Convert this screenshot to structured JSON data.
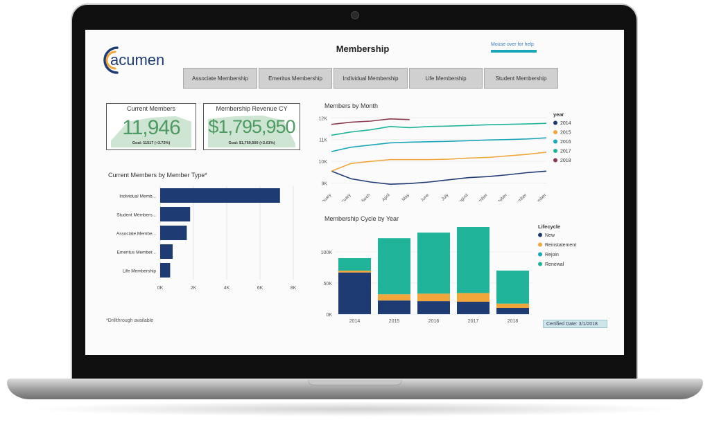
{
  "header": {
    "logo_text": "acumen",
    "title": "Membership",
    "help_text": "Mouse over for help"
  },
  "tabs": [
    {
      "label": "Associate Membership"
    },
    {
      "label": "Emeritus Membership"
    },
    {
      "label": "Individual Membership"
    },
    {
      "label": "Life Membership"
    },
    {
      "label": "Student Membership"
    }
  ],
  "kpis": {
    "current_members": {
      "title": "Current Members",
      "value": "11,946",
      "goal": "Goal: 11517 (+3.72%)"
    },
    "revenue": {
      "title": "Membership Revenue CY",
      "value": "$1,795,950",
      "goal": "Goal: $1,760,500 (+2.01%)"
    }
  },
  "colors": {
    "navy": "#1f3b73",
    "orange": "#f0a63a",
    "teal": "#1aa6b7",
    "green": "#1fb39a",
    "maroon": "#8a3a4f",
    "kpi_green": "#4f9a63"
  },
  "footnote": "*Drillthrough available",
  "certified": "Certified Date: 3/1/2018",
  "chart_data": [
    {
      "type": "bar",
      "orientation": "horizontal",
      "title": "Current Members by Member Type*",
      "categories": [
        "Individual Memb...",
        "Student Members...",
        "Associate Membe...",
        "Emeritus Member...",
        "Life Membership"
      ],
      "values": [
        7200,
        1800,
        1600,
        750,
        600
      ],
      "xticks": [
        "0K",
        "2K",
        "4K",
        "6K",
        "8K"
      ],
      "xlim": [
        0,
        8000
      ],
      "grid": true
    },
    {
      "type": "line",
      "title": "Members by Month",
      "x": [
        "January",
        "February",
        "March",
        "April",
        "May",
        "June",
        "July",
        "August",
        "September",
        "October",
        "November",
        "December"
      ],
      "yticks": [
        "9K",
        "10K",
        "11K",
        "12K"
      ],
      "ylim": [
        8700,
        12200
      ],
      "legend_title": "year",
      "legend_position": "right",
      "series": [
        {
          "name": "2014",
          "color": "#1f3b73",
          "values": [
            9550,
            9200,
            9050,
            8950,
            8980,
            9050,
            9150,
            9250,
            9300,
            9380,
            9480,
            9550
          ]
        },
        {
          "name": "2015",
          "color": "#f0a63a",
          "values": [
            9550,
            9900,
            10000,
            10080,
            10080,
            10080,
            10100,
            10150,
            10180,
            10250,
            10320,
            10420
          ]
        },
        {
          "name": "2016",
          "color": "#1aa6b7",
          "values": [
            10450,
            10650,
            10750,
            10850,
            10880,
            10900,
            10920,
            10950,
            10980,
            11000,
            11030,
            11080
          ]
        },
        {
          "name": "2017",
          "color": "#1fb39a",
          "values": [
            11200,
            11350,
            11450,
            11600,
            11550,
            11600,
            11620,
            11650,
            11680,
            11700,
            11720,
            11750
          ]
        },
        {
          "name": "2018",
          "color": "#8a3a4f",
          "values": [
            11700,
            11800,
            11850,
            11950,
            11920,
            null,
            null,
            null,
            null,
            null,
            null,
            null
          ]
        }
      ]
    },
    {
      "type": "bar",
      "stacked": true,
      "title": "Membership Cycle by Year",
      "categories": [
        "2014",
        "2015",
        "2016",
        "2017",
        "2018"
      ],
      "yticks": [
        "0K",
        "50K",
        "100K"
      ],
      "ylim": [
        0,
        140000
      ],
      "legend_title": "Lifecycle",
      "legend_position": "right",
      "series": [
        {
          "name": "New",
          "color": "#1f3b73",
          "values": [
            67000,
            22000,
            21000,
            20000,
            10000
          ]
        },
        {
          "name": "Reinstatement",
          "color": "#f0a63a",
          "values": [
            3000,
            10000,
            12000,
            14000,
            7000
          ]
        },
        {
          "name": "Rejoin",
          "color": "#1aa6b7",
          "values": [
            0,
            0,
            0,
            0,
            0
          ]
        },
        {
          "name": "Renewal",
          "color": "#1fb39a",
          "values": [
            20000,
            90000,
            98000,
            106000,
            53000
          ]
        }
      ]
    }
  ]
}
